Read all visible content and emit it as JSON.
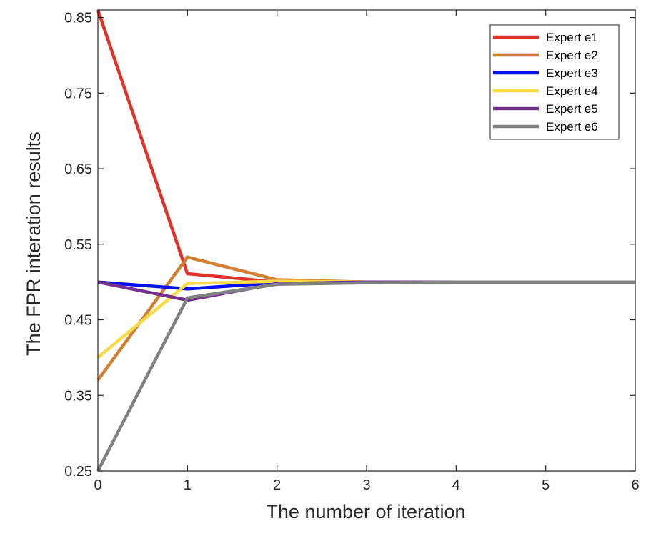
{
  "chart_data": {
    "type": "line",
    "title": "",
    "xlabel": "The number of iteration",
    "ylabel": "The FPR interation results",
    "xlim": [
      0,
      6
    ],
    "ylim": [
      0.25,
      0.86
    ],
    "xticks": [
      "0",
      "1",
      "2",
      "3",
      "4",
      "5",
      "6"
    ],
    "yticks": [
      "0.25",
      "0.35",
      "0.45",
      "0.55",
      "0.65",
      "0.75",
      "0.85"
    ],
    "grid": false,
    "legend_position": "top-right",
    "x": [
      0,
      1,
      2,
      3,
      4,
      5,
      6
    ],
    "series": [
      {
        "name": "Expert e1",
        "color": "#e0332a",
        "values": [
          0.86,
          0.511,
          0.5,
          0.5,
          0.5,
          0.5,
          0.5
        ]
      },
      {
        "name": "Expert e2",
        "color": "#d08030",
        "values": [
          0.37,
          0.533,
          0.503,
          0.5,
          0.5,
          0.5,
          0.5
        ]
      },
      {
        "name": "Expert e3",
        "color": "#0010f0",
        "values": [
          0.5,
          0.491,
          0.499,
          0.5,
          0.5,
          0.5,
          0.5
        ]
      },
      {
        "name": "Expert e4",
        "color": "#f9da47",
        "values": [
          0.4,
          0.498,
          0.501,
          0.5,
          0.5,
          0.5,
          0.5
        ]
      },
      {
        "name": "Expert e5",
        "color": "#74308c",
        "values": [
          0.5,
          0.476,
          0.498,
          0.5,
          0.5,
          0.5,
          0.5
        ]
      },
      {
        "name": "Expert e6",
        "color": "#808080",
        "values": [
          0.25,
          0.479,
          0.497,
          0.499,
          0.5,
          0.5,
          0.5
        ]
      }
    ]
  }
}
